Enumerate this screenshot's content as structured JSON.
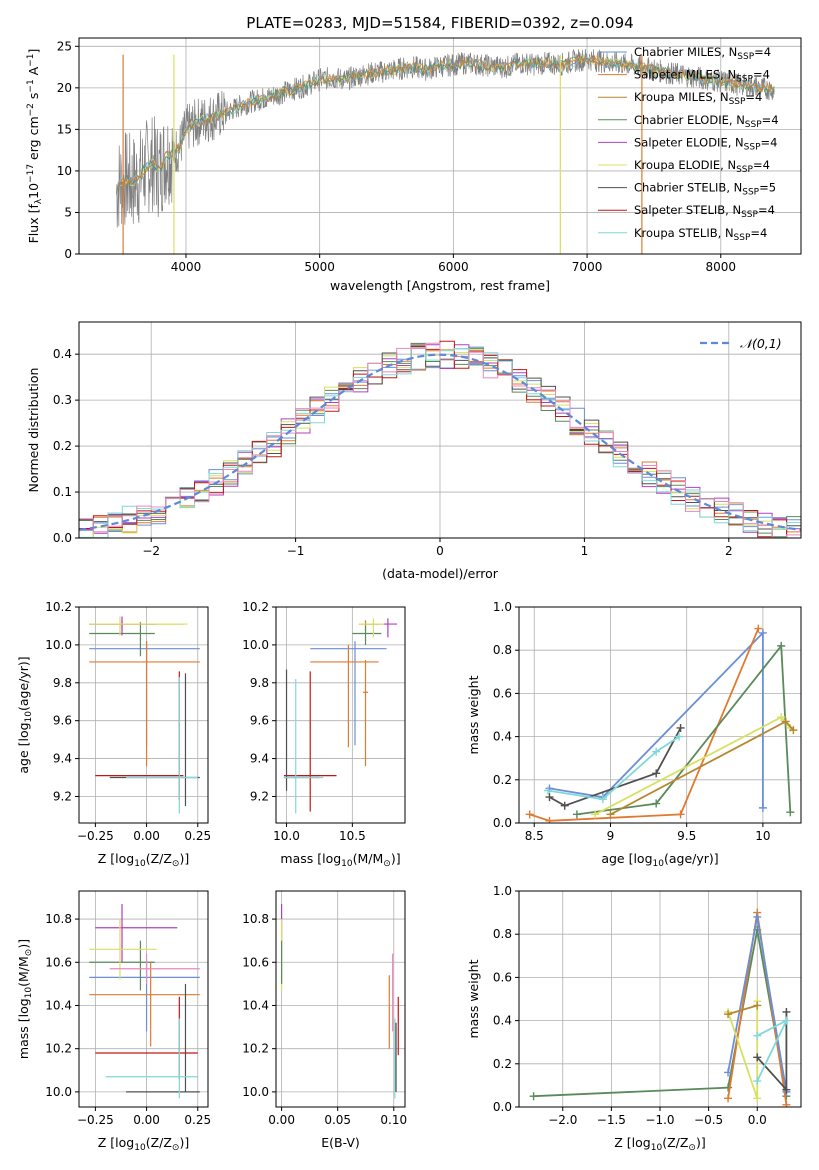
{
  "figure_title": "PLATE=0283, MJD=51584, FIBERID=0392, z=0.094",
  "models": [
    {
      "name": "Chabrier MILES",
      "nssp": "4",
      "color": "#6a8fd8"
    },
    {
      "name": "Salpeter MILES",
      "nssp": "4",
      "color": "#e07a30"
    },
    {
      "name": "Kroupa MILES",
      "nssp": "4",
      "color": "#b8862e"
    },
    {
      "name": "Chabrier ELODIE",
      "nssp": "4",
      "color": "#5a8a5a"
    },
    {
      "name": "Salpeter ELODIE",
      "nssp": "4",
      "color": "#b040c0"
    },
    {
      "name": "Kroupa ELODIE",
      "nssp": "4",
      "color": "#d8e060"
    },
    {
      "name": "Chabrier STELIB",
      "nssp": "5",
      "color": "#505050"
    },
    {
      "name": "Salpeter STELIB",
      "nssp": "4",
      "color": "#c01818"
    },
    {
      "name": "Kroupa STELIB",
      "nssp": "4",
      "color": "#80d8d8"
    }
  ],
  "nssp_prefix": "N",
  "nssp_sub": "SSP",
  "chart_data": [
    {
      "id": "spectrum",
      "type": "line",
      "xlabel": "wavelength [Angstrom, rest frame]",
      "ylabel": "Flux [f",
      "ylabel_sub": "λ",
      "ylabel_rest": "10",
      "ylabel_exp": "−17",
      "ylabel_units": " erg cm",
      "ylabel_units_exp": "−2",
      "ylabel_units2": " s",
      "ylabel_units2_exp": "−1",
      "ylabel_units3": " A",
      "ylabel_units3_exp": "−1",
      "ylabel_end": "]",
      "xlim": [
        3200,
        8600
      ],
      "ylim": [
        0,
        26
      ],
      "xticks": [
        4000,
        5000,
        6000,
        7000,
        8000
      ],
      "yticks": [
        0,
        5,
        10,
        15,
        20,
        25
      ],
      "data_x": [
        3480,
        3500,
        3550,
        3600,
        3650,
        3700,
        3750,
        3800,
        3850,
        3900,
        3950,
        4000,
        4100,
        4200,
        4300,
        4400,
        4500,
        4600,
        4700,
        4800,
        4900,
        5000,
        5100,
        5200,
        5300,
        5400,
        5500,
        5600,
        5700,
        5800,
        5900,
        6000,
        6100,
        6200,
        6300,
        6400,
        6500,
        6600,
        6700,
        6800,
        6900,
        7000,
        7100,
        7200,
        7300,
        7400,
        7500,
        7600,
        7700,
        7800,
        7900,
        8000,
        8100,
        8200,
        8300,
        8400
      ],
      "data_y": [
        7.5,
        8.5,
        9.0,
        8.6,
        9.2,
        10.4,
        11.0,
        10.0,
        11.8,
        12.1,
        12.8,
        15.0,
        16.0,
        16.5,
        17.0,
        17.8,
        18.4,
        18.8,
        19.3,
        19.8,
        20.3,
        21.0,
        21.2,
        21.0,
        21.5,
        21.8,
        22.0,
        22.3,
        22.5,
        22.2,
        22.6,
        22.8,
        23.0,
        22.8,
        22.6,
        22.5,
        23.0,
        22.8,
        23.0,
        22.8,
        23.2,
        23.5,
        23.2,
        23.0,
        22.8,
        22.5,
        22.2,
        21.8,
        21.6,
        21.3,
        21.0,
        20.8,
        20.5,
        20.3,
        20.0,
        19.8
      ]
    },
    {
      "id": "histogram",
      "type": "bar",
      "xlabel": "(data-model)/error",
      "ylabel": "Normed distribution",
      "xlim": [
        -2.5,
        2.5
      ],
      "ylim": [
        0,
        0.47
      ],
      "xticks": [
        -2,
        -1,
        0,
        1,
        2
      ],
      "xtick_labels": [
        "−2",
        "−1",
        "0",
        "1",
        "2"
      ],
      "yticks": [
        0.0,
        0.1,
        0.2,
        0.3,
        0.4
      ],
      "legend_label": "𝒩(0,1)",
      "legend_placement": "top-right",
      "bin_width": 0.1
    },
    {
      "id": "age_vs_Z",
      "type": "scatter",
      "xlabel": "Z [log",
      "xlabel_sub": "10",
      "xlabel_rest": "(Z/Z",
      "xlabel_sun": "⊙",
      "xlabel_end": ")]",
      "ylabel": "age  [log",
      "ylabel_sub": "10",
      "ylabel_rest": "(age/yr)]",
      "xlim": [
        -0.33,
        0.3
      ],
      "ylim": [
        9.06,
        10.2
      ],
      "xticks": [
        -0.25,
        0.0,
        0.25
      ],
      "xtick_labels": [
        "−0.25",
        "0.00",
        "0.25"
      ],
      "yticks": [
        9.2,
        9.4,
        9.6,
        9.8,
        10.0,
        10.2
      ],
      "points": [
        {
          "m": 0,
          "x": 0.0,
          "y": 9.98,
          "xe": [
            -0.28,
            0.26
          ],
          "ye": [
            9.47,
            10.02
          ]
        },
        {
          "m": 1,
          "x": 0.0,
          "y": 9.91,
          "xe": [
            -0.28,
            0.26
          ],
          "ye": [
            9.36,
            10.02
          ]
        },
        {
          "m": 2,
          "x": -0.12,
          "y": 10.11,
          "xe": [
            -0.28,
            0.18
          ],
          "ye": [
            10.08,
            10.13
          ]
        },
        {
          "m": 3,
          "x": -0.03,
          "y": 10.06,
          "xe": [
            -0.28,
            0.04
          ],
          "ye": [
            9.94,
            10.12
          ]
        },
        {
          "m": 4,
          "x": -0.12,
          "y": 10.11,
          "xe": [
            -0.28,
            0.05
          ],
          "ye": [
            10.05,
            10.15
          ]
        },
        {
          "m": 5,
          "x": -0.13,
          "y": 10.11,
          "xe": [
            -0.28,
            0.2
          ],
          "ye": [
            10.05,
            10.15
          ]
        },
        {
          "m": 6,
          "x": 0.19,
          "y": 9.3,
          "xe": [
            -0.18,
            0.26
          ],
          "ye": [
            9.15,
            9.85
          ]
        },
        {
          "m": 7,
          "x": 0.16,
          "y": 9.31,
          "xe": [
            -0.25,
            0.18
          ],
          "ye": [
            9.18,
            9.86
          ]
        },
        {
          "m": 8,
          "x": 0.16,
          "y": 9.3,
          "xe": [
            -0.1,
            0.25
          ],
          "ye": [
            9.11,
            9.83
          ]
        }
      ]
    },
    {
      "id": "age_vs_mass",
      "type": "scatter",
      "xlabel": "mass [log",
      "xlabel_sub": "10",
      "xlabel_rest": "(M/M",
      "xlabel_sun": "⊙",
      "xlabel_end": ")]",
      "xlim": [
        9.92,
        10.9
      ],
      "ylim": [
        9.06,
        10.2
      ],
      "xticks": [
        10.0,
        10.5
      ],
      "xtick_labels": [
        "10.0",
        "10.5"
      ],
      "yticks": [
        9.2,
        9.4,
        9.6,
        9.8,
        10.0,
        10.2
      ],
      "points": [
        {
          "m": 0,
          "x": 10.52,
          "y": 9.98,
          "xe": [
            10.18,
            10.76
          ],
          "ye": [
            9.47,
            10.02
          ]
        },
        {
          "m": 1,
          "x": 10.47,
          "y": 9.91,
          "xe": [
            10.18,
            10.7
          ],
          "ye": [
            9.46,
            10.0
          ]
        },
        {
          "m": 2,
          "x": 10.6,
          "y": 10.11,
          "xe": [
            10.55,
            10.7
          ],
          "ye": [
            10.08,
            10.13
          ]
        },
        {
          "m": 3,
          "x": 10.6,
          "y": 10.06,
          "xe": [
            10.5,
            10.72
          ],
          "ye": [
            10.0,
            10.1
          ]
        },
        {
          "m": 4,
          "x": 10.77,
          "y": 10.11,
          "xe": [
            10.6,
            10.84
          ],
          "ye": [
            10.04,
            10.14
          ]
        },
        {
          "m": 5,
          "x": 10.66,
          "y": 10.11,
          "xe": [
            10.55,
            10.74
          ],
          "ye": [
            10.04,
            10.14
          ]
        },
        {
          "m": 6,
          "x": 10.0,
          "y": 9.3,
          "xe": [
            9.98,
            10.25
          ],
          "ye": [
            9.23,
            9.87
          ]
        },
        {
          "m": 7,
          "x": 10.18,
          "y": 9.31,
          "xe": [
            9.98,
            10.38
          ],
          "ye": [
            9.12,
            9.86
          ]
        },
        {
          "m": 8,
          "x": 10.07,
          "y": 9.3,
          "xe": [
            9.98,
            10.28
          ],
          "ye": [
            9.11,
            9.82
          ]
        },
        {
          "m": 1,
          "x": 10.6,
          "y": 9.75,
          "xe": [
            10.58,
            10.62
          ],
          "ye": [
            9.36,
            9.92
          ]
        }
      ]
    },
    {
      "id": "mass_weight_vs_age",
      "type": "line",
      "xlabel": "age  [log",
      "xlabel_sub": "10",
      "xlabel_rest": "(age/yr)]",
      "ylabel": "mass weight",
      "xlim": [
        8.4,
        10.25
      ],
      "ylim": [
        0,
        1.0
      ],
      "xticks": [
        8.5,
        9.0,
        9.5,
        10.0
      ],
      "yticks": [
        0.0,
        0.2,
        0.4,
        0.6,
        0.8,
        1.0
      ],
      "series": [
        {
          "m": 0,
          "x": [
            8.6,
            8.95,
            10.0,
            10.0
          ],
          "y": [
            0.16,
            0.12,
            0.88,
            0.07
          ]
        },
        {
          "m": 1,
          "x": [
            8.47,
            8.6,
            9.46,
            9.97
          ],
          "y": [
            0.04,
            0.01,
            0.04,
            0.9
          ]
        },
        {
          "m": 3,
          "x": [
            8.78,
            9.3,
            10.12,
            10.18
          ],
          "y": [
            0.04,
            0.09,
            0.82,
            0.05
          ]
        },
        {
          "m": 5,
          "x": [
            8.9,
            10.12,
            10.18
          ],
          "y": [
            0.04,
            0.49,
            0.44
          ]
        },
        {
          "m": 6,
          "x": [
            8.6,
            8.7,
            9.3,
            9.46
          ],
          "y": [
            0.12,
            0.08,
            0.23,
            0.44
          ]
        },
        {
          "m": 8,
          "x": [
            8.59,
            8.95,
            9.3,
            9.45
          ],
          "y": [
            0.15,
            0.11,
            0.33,
            0.4
          ]
        },
        {
          "m": 2,
          "x": [
            9.0,
            10.15,
            10.2
          ],
          "y": [
            0.04,
            0.47,
            0.43
          ]
        }
      ]
    },
    {
      "id": "mass_vs_Z",
      "type": "scatter",
      "xlabel": "Z [log",
      "xlabel_sub": "10",
      "xlabel_rest": "(Z/Z",
      "xlabel_sun": "⊙",
      "xlabel_end": ")]",
      "ylabel": "mass [log",
      "ylabel_sub": "10",
      "ylabel_rest": "(M/M",
      "ylabel_sun": "⊙",
      "ylabel_end": ")]",
      "xlim": [
        -0.33,
        0.3
      ],
      "ylim": [
        9.93,
        10.93
      ],
      "xticks": [
        -0.25,
        0.0,
        0.25
      ],
      "xtick_labels": [
        "−0.25",
        "0.00",
        "0.25"
      ],
      "yticks": [
        10.0,
        10.2,
        10.4,
        10.6,
        10.8
      ],
      "points": [
        {
          "m": 0,
          "x": 0.0,
          "y": 10.53,
          "xe": [
            -0.28,
            0.26
          ],
          "ye": [
            10.28,
            10.6
          ]
        },
        {
          "m": 1,
          "x": 0.02,
          "y": 10.45,
          "xe": [
            -0.28,
            0.26
          ],
          "ye": [
            10.21,
            10.6
          ]
        },
        {
          "m": 3,
          "x": -0.03,
          "y": 10.6,
          "xe": [
            -0.28,
            0.04
          ],
          "ye": [
            10.47,
            10.7
          ]
        },
        {
          "m": 4,
          "x": -0.12,
          "y": 10.76,
          "xe": [
            -0.25,
            0.15
          ],
          "ye": [
            10.6,
            10.87
          ]
        },
        {
          "m": 5,
          "x": -0.13,
          "y": 10.66,
          "xe": [
            -0.28,
            0.05
          ],
          "ye": [
            10.52,
            10.8
          ]
        },
        {
          "m": 9,
          "x": 0.0,
          "y": 10.57,
          "xe": [
            -0.18,
            0.26
          ],
          "ye": [
            10.5,
            10.64
          ]
        },
        {
          "m": 6,
          "x": 0.19,
          "y": 10.0,
          "xe": [
            -0.1,
            0.26
          ],
          "ye": [
            10.0,
            10.5
          ]
        },
        {
          "m": 7,
          "x": 0.16,
          "y": 10.18,
          "xe": [
            -0.25,
            0.25
          ],
          "ye": [
            10.06,
            10.44
          ]
        },
        {
          "m": 8,
          "x": 0.16,
          "y": 10.07,
          "xe": [
            -0.2,
            0.25
          ],
          "ye": [
            9.97,
            10.34
          ]
        }
      ]
    },
    {
      "id": "mass_vs_ebv",
      "type": "scatter",
      "xlabel": "E(B-V)",
      "xlim": [
        -0.005,
        0.11
      ],
      "ylim": [
        9.93,
        10.93
      ],
      "xticks": [
        0.0,
        0.05,
        0.1
      ],
      "xtick_labels": [
        "0.00",
        "0.05",
        "0.10"
      ],
      "yticks": [
        10.0,
        10.2,
        10.4,
        10.6,
        10.8
      ],
      "points": [
        {
          "m": 4,
          "x": 0.0,
          "y": 10.78,
          "ye": [
            10.7,
            10.87
          ]
        },
        {
          "m": 5,
          "x": 0.0,
          "y": 10.65,
          "ye": [
            10.47,
            10.8
          ]
        },
        {
          "m": 3,
          "x": 0.0,
          "y": 10.6,
          "ye": [
            10.5,
            10.7
          ]
        },
        {
          "m": 1,
          "x": 0.096,
          "y": 10.37,
          "ye": [
            10.2,
            10.54
          ]
        },
        {
          "m": 9,
          "x": 0.099,
          "y": 10.45,
          "ye": [
            10.28,
            10.64
          ]
        },
        {
          "m": 7,
          "x": 0.104,
          "y": 10.3,
          "ye": [
            10.17,
            10.44
          ]
        },
        {
          "m": 8,
          "x": 0.101,
          "y": 10.15,
          "ye": [
            9.97,
            10.34
          ]
        },
        {
          "m": 6,
          "x": 0.102,
          "y": 10.1,
          "ye": [
            10.0,
            10.32
          ]
        }
      ]
    },
    {
      "id": "mass_weight_vs_Z",
      "type": "line",
      "xlabel": "Z [log",
      "xlabel_sub": "10",
      "xlabel_rest": "(Z/Z",
      "xlabel_sun": "⊙",
      "xlabel_end": ")]",
      "ylabel": "mass weight",
      "xlim": [
        -2.45,
        0.45
      ],
      "ylim": [
        0,
        1.0
      ],
      "xticks": [
        -2.0,
        -1.5,
        -1.0,
        -0.5,
        0.0
      ],
      "xtick_labels": [
        "−2.0",
        "−1.5",
        "−1.0",
        "−0.5",
        "0.0"
      ],
      "yticks": [
        0.0,
        0.2,
        0.4,
        0.6,
        0.8,
        1.0
      ],
      "series": [
        {
          "m": 3,
          "x": [
            -2.3,
            -0.3,
            0.0,
            0.3
          ],
          "y": [
            0.05,
            0.09,
            0.82,
            0.05
          ]
        },
        {
          "m": 1,
          "x": [
            -0.3,
            0.0,
            0.3
          ],
          "y": [
            0.04,
            0.9,
            0.01
          ]
        },
        {
          "m": 0,
          "x": [
            -0.3,
            0.0,
            0.3
          ],
          "y": [
            0.16,
            0.88,
            0.07
          ]
        },
        {
          "m": 5,
          "x": [
            -0.3,
            0.0,
            0.0
          ],
          "y": [
            0.44,
            0.04,
            0.49
          ]
        },
        {
          "m": 6,
          "x": [
            0.0,
            0.3,
            0.3
          ],
          "y": [
            0.23,
            0.08,
            0.44
          ]
        },
        {
          "m": 8,
          "x": [
            0.0,
            0.3,
            0.0
          ],
          "y": [
            0.12,
            0.4,
            0.33
          ]
        },
        {
          "m": 2,
          "x": [
            -0.3,
            0.0
          ],
          "y": [
            0.43,
            0.47
          ]
        }
      ]
    }
  ]
}
